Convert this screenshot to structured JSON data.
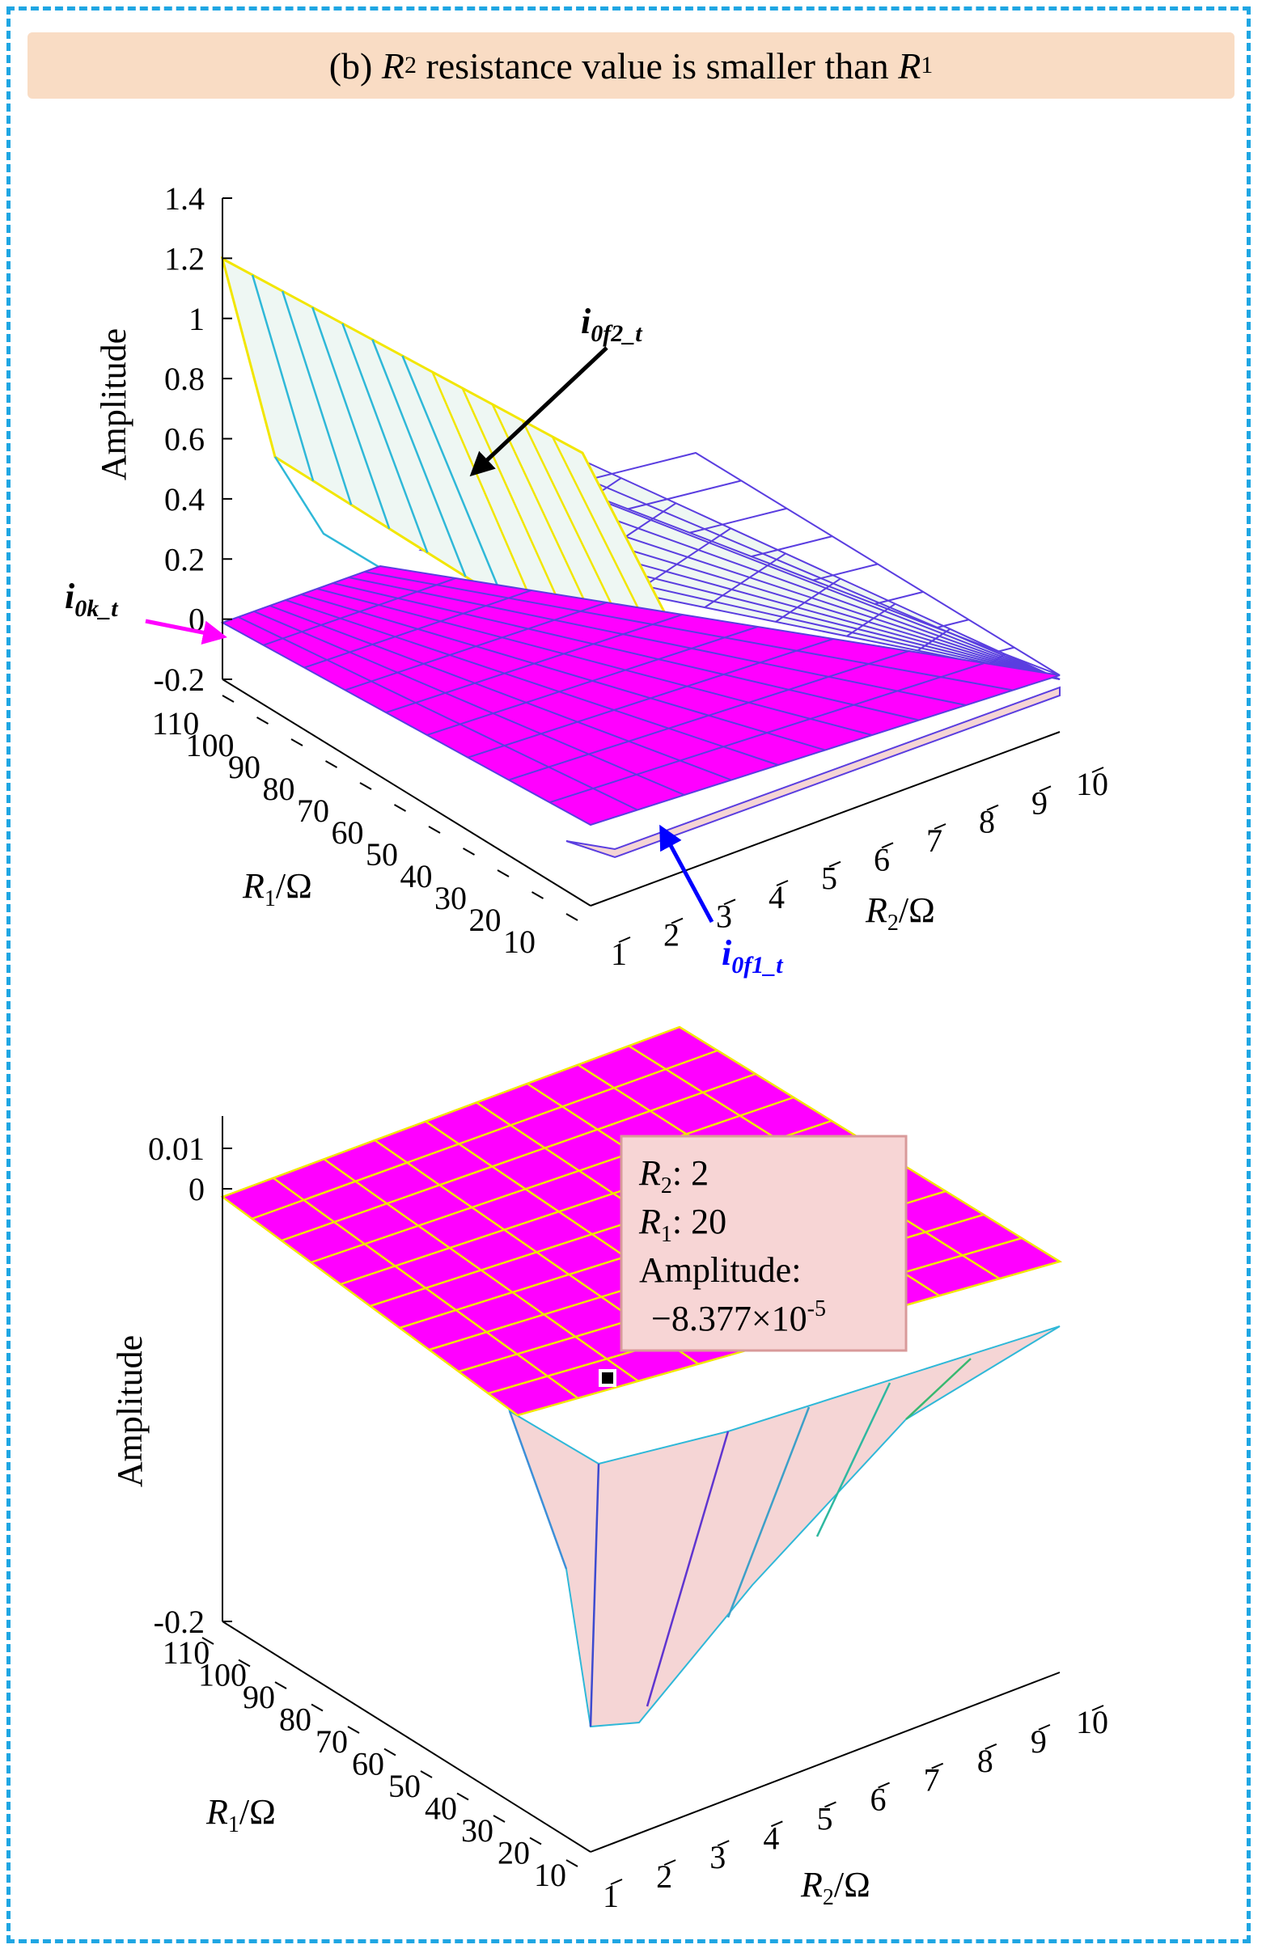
{
  "panel_title": {
    "prefix": "(b)",
    "r2_symbol": "R",
    "r2_sub": "2",
    "middle": "resistance value is smaller than",
    "r1_symbol": "R",
    "r1_sub": "1"
  },
  "colors": {
    "frame": "#1fa6e3",
    "title_bg": "#f9dcc4",
    "magenta": "#ff00ff",
    "mint": "#eef7f3",
    "pink": "#f5d5d5",
    "yellow": "#f2e600",
    "cyan": "#2fb8d8",
    "purple": "#5a3ee0",
    "blue_arrow": "#0000ff",
    "pink_arrow": "#ff00ff",
    "tooltip_bg": "#f7d5d5",
    "tooltip_border": "#d89a9a"
  },
  "chart_data": [
    {
      "type": "surface3d",
      "ylabel": "Amplitude",
      "zlim": [
        -0.2,
        1.4
      ],
      "z_ticks": [
        "1.4",
        "1.2",
        "1",
        "0.8",
        "0.6",
        "0.4",
        "0.2",
        "0",
        "-0.2"
      ],
      "x_axis": {
        "label": "R1/Ω",
        "symbol": "R",
        "sub": "1",
        "unit": "/Ω",
        "ticks": [
          "110",
          "100",
          "90",
          "80",
          "70",
          "60",
          "50",
          "40",
          "30",
          "20",
          "10"
        ]
      },
      "y_axis": {
        "label": "R2/Ω",
        "symbol": "R",
        "sub": "2",
        "unit": "/Ω",
        "ticks": [
          "1",
          "2",
          "3",
          "4",
          "5",
          "6",
          "7",
          "8",
          "9",
          "10"
        ]
      },
      "series": [
        {
          "name": "i0f2_t",
          "label_main": "i",
          "label_sub": "0f2_t",
          "description": "upper surface, starts near 1.2 at R1=110, R2=1 and decays toward 0 as R2 increases",
          "values_along_R2_at_R1_110": [
            1.2,
            0.6,
            0.3,
            0.15,
            0.08,
            0.05,
            0.03,
            0.02,
            0.01,
            0.01
          ]
        },
        {
          "name": "i0k_t",
          "label_main": "i",
          "label_sub": "0k_t",
          "description": "flat surface at approximately 0"
        },
        {
          "name": "i0f1_t",
          "label_main": "i",
          "label_sub": "0f1_t",
          "description": "surface slightly below 0, near R2 small"
        }
      ]
    },
    {
      "type": "surface3d",
      "ylabel": "Amplitude",
      "zlim": [
        -0.2,
        0.01
      ],
      "z_ticks": [
        "0.01",
        "0",
        "-0.2"
      ],
      "x_axis": {
        "label": "R1/Ω",
        "symbol": "R",
        "sub": "1",
        "unit": "/Ω",
        "ticks": [
          "110",
          "100",
          "90",
          "80",
          "70",
          "60",
          "50",
          "40",
          "30",
          "20",
          "10"
        ]
      },
      "y_axis": {
        "label": "R2/Ω",
        "symbol": "R",
        "sub": "2",
        "unit": "/Ω",
        "ticks": [
          "1",
          "2",
          "3",
          "4",
          "5",
          "6",
          "7",
          "8",
          "9",
          "10"
        ]
      },
      "datatip": {
        "r2_label": "R",
        "r2_sub": "2",
        "r2_value": ": 2",
        "r1_label": "R",
        "r1_sub": "1",
        "r1_value": ": 20",
        "amp_label": "Amplitude:",
        "amp_value": "−8.377×10",
        "amp_exp": "-5",
        "point": {
          "R2": 2,
          "R1": 20,
          "amplitude": -8.377e-05
        }
      }
    }
  ]
}
